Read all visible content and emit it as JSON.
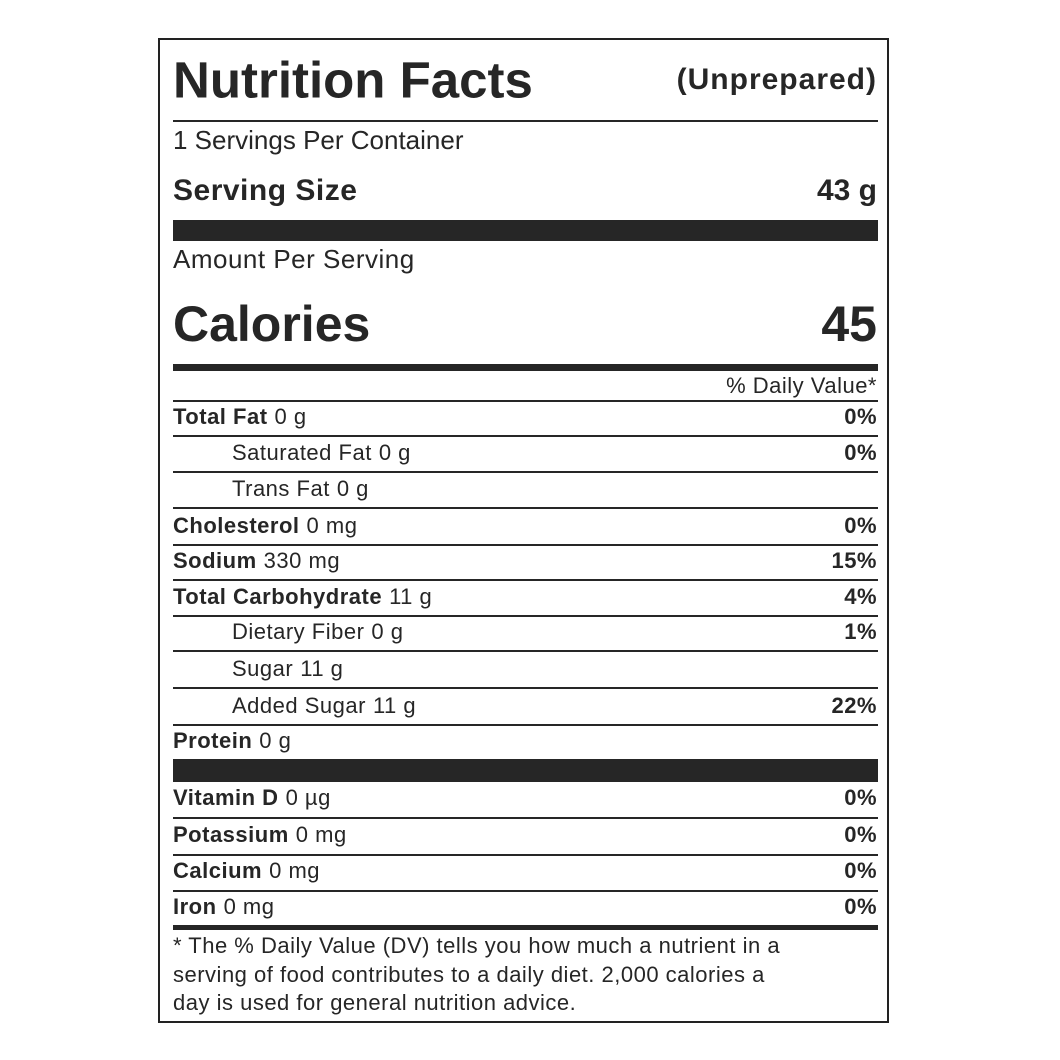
{
  "label": {
    "title": "Nutrition Facts",
    "subtitle": "(Unprepared)",
    "servings": "1 Servings Per Container",
    "serving_size": {
      "label": "Serving Size",
      "value": "43 g"
    },
    "amount_per_serving": "Amount Per Serving",
    "calories": {
      "label": "Calories",
      "value": "45"
    },
    "dv_header": "% Daily Value*",
    "nutrients": [
      {
        "name": "Total Fat",
        "amount": "0 g",
        "dv": "0%",
        "subitems": [
          {
            "name": "Saturated Fat",
            "amount": "0 g",
            "dv": "0%"
          },
          {
            "name": "Trans Fat",
            "amount": "0 g"
          }
        ]
      },
      {
        "name": "Cholesterol",
        "amount": "0 mg",
        "dv": "0%"
      },
      {
        "name": "Sodium",
        "amount": "330 mg",
        "dv": "15%"
      },
      {
        "name": "Total Carbohydrate",
        "amount": "11 g",
        "dv": "4%",
        "subitems": [
          {
            "name": "Dietary Fiber",
            "amount": "0 g",
            "dv": "1%"
          },
          {
            "name": "Sugar",
            "amount": "11 g"
          },
          {
            "name": "Added Sugar",
            "amount": "11 g",
            "dv": "22%"
          }
        ]
      },
      {
        "name": "Protein",
        "amount": "0 g"
      }
    ],
    "minerals": [
      {
        "name": "Vitamin D",
        "amount": "0 µg",
        "dv": "0%"
      },
      {
        "name": "Potassium",
        "amount": "0 mg",
        "dv": "0%"
      },
      {
        "name": "Calcium",
        "amount": "0 mg",
        "dv": "0%"
      },
      {
        "name": "Iron",
        "amount": "0 mg",
        "dv": "0%"
      }
    ],
    "footnote": [
      "* The % Daily Value (DV) tells you how much a nutrient in a",
      "serving of food contributes to a daily diet. 2,000 calories a",
      "day is used for general nutrition advice."
    ]
  }
}
